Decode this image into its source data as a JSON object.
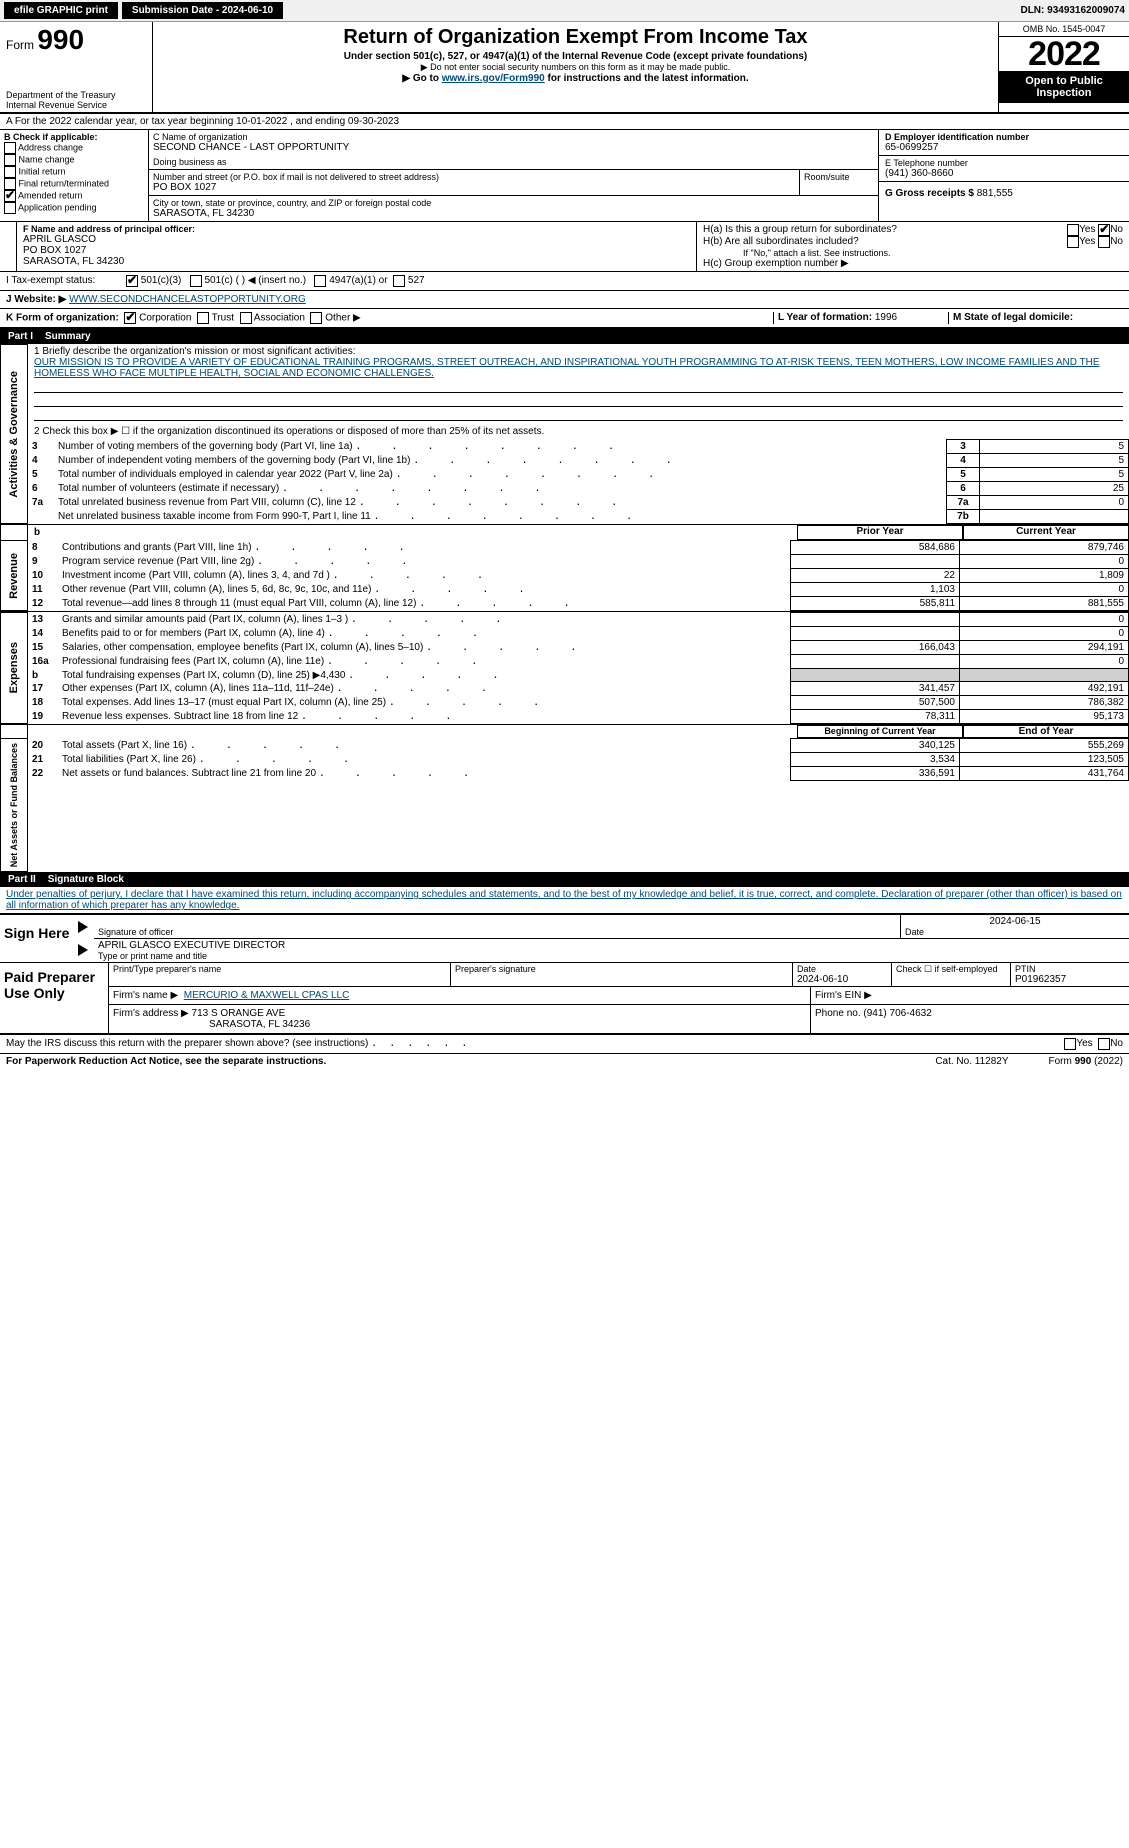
{
  "topbar": {
    "efile": "efile GRAPHIC print",
    "submission_label": "Submission Date - 2024-06-10",
    "dln": "DLN: 93493162009074"
  },
  "form_header": {
    "form_label": "Form",
    "form_number": "990",
    "dept": "Department of the Treasury",
    "irs": "Internal Revenue Service",
    "title": "Return of Organization Exempt From Income Tax",
    "sub1": "Under section 501(c), 527, or 4947(a)(1) of the Internal Revenue Code (except private foundations)",
    "sub2": "▶ Do not enter social security numbers on this form as it may be made public.",
    "sub3_pre": "▶ Go to ",
    "sub3_link": "www.irs.gov/Form990",
    "sub3_post": " for instructions and the latest information.",
    "omb": "OMB No. 1545-0047",
    "year": "2022",
    "open": "Open to Public Inspection"
  },
  "period": {
    "a": "A For the 2022 calendar year, or tax year beginning 10-01-2022     , and ending 09-30-2023"
  },
  "boxB": {
    "label": "B Check if applicable:",
    "addr": "Address change",
    "name": "Name change",
    "init": "Initial return",
    "final": "Final return/terminated",
    "amend": "Amended return",
    "app": "Application pending",
    "amend_checked": true
  },
  "boxC": {
    "label": "C Name of organization",
    "org": "SECOND CHANCE - LAST OPPORTUNITY",
    "dba_label": "Doing business as",
    "street_label": "Number and street (or P.O. box if mail is not delivered to street address)",
    "room_label": "Room/suite",
    "street": "PO BOX 1027",
    "city_label": "City or town, state or province, country, and ZIP or foreign postal code",
    "city": "SARASOTA, FL  34230"
  },
  "boxD": {
    "label": "D Employer identification number",
    "ein": "65-0699257"
  },
  "boxE": {
    "label": "E Telephone number",
    "phone": "(941) 360-8660"
  },
  "boxG": {
    "label": "G Gross receipts $",
    "val": "881,555"
  },
  "boxF": {
    "label": "F Name and address of principal officer:",
    "name": "APRIL GLASCO",
    "line2": "PO BOX 1027",
    "line3": "SARASOTA, FL  34230"
  },
  "boxH": {
    "a": "H(a)   Is this a group return for subordinates?",
    "a_yes": "Yes",
    "a_no": "No",
    "b": "H(b)   Are all subordinates included?",
    "b_yes": "Yes",
    "b_no": "No",
    "b_note": "If \"No,\" attach a list. See instructions.",
    "c": "H(c)   Group exemption number ▶"
  },
  "boxI": {
    "label": "I     Tax-exempt status:",
    "c3": "501(c)(3)",
    "c": "501(c) (    ) ◀ (insert no.)",
    "a1": "4947(a)(1) or",
    "s527": "527"
  },
  "boxJ": {
    "label": "J     Website: ▶",
    "url": "WWW.SECONDCHANCELASTOPPORTUNITY.ORG"
  },
  "boxK": {
    "label": "K Form of organization:",
    "corp": "Corporation",
    "trust": "Trust",
    "assoc": "Association",
    "other": "Other ▶"
  },
  "boxL": {
    "label": "L Year of formation:",
    "val": "1996"
  },
  "boxM": {
    "label": "M State of legal domicile:",
    "val": ""
  },
  "part1": {
    "title": "Part I",
    "name": "Summary",
    "l1": "1  Briefly describe the organization's mission or most significant activities:",
    "mission": "OUR MISSION IS TO PROVIDE A VARIETY OF EDUCATIONAL TRAINING PROGRAMS, STREET OUTREACH, AND INSPIRATIONAL YOUTH PROGRAMMING TO AT-RISK TEENS, TEEN MOTHERS, LOW INCOME FAMILIES AND THE HOMELESS WHO FACE MULTIPLE HEALTH, SOCIAL AND ECONOMIC CHALLENGES.",
    "l2": "2  Check this box ▶ ☐  if the organization discontinued its operations or disposed of more than 25% of its net assets.",
    "rows_ag": [
      {
        "n": "3",
        "t": "Number of voting members of the governing body (Part VI, line 1a)",
        "box": "3",
        "v": "5"
      },
      {
        "n": "4",
        "t": "Number of independent voting members of the governing body (Part VI, line 1b)",
        "box": "4",
        "v": "5"
      },
      {
        "n": "5",
        "t": "Total number of individuals employed in calendar year 2022 (Part V, line 2a)",
        "box": "5",
        "v": "5"
      },
      {
        "n": "6",
        "t": "Total number of volunteers (estimate if necessary)",
        "box": "6",
        "v": "25"
      },
      {
        "n": "7a",
        "t": "Total unrelated business revenue from Part VIII, column (C), line 12",
        "box": "7a",
        "v": "0"
      },
      {
        "n": "",
        "t": "Net unrelated business taxable income from Form 990-T, Part I, line 11",
        "box": "7b",
        "v": ""
      }
    ],
    "col_prior": "Prior Year",
    "col_curr": "Current Year",
    "rows_rev": [
      {
        "n": "8",
        "t": "Contributions and grants (Part VIII, line 1h)",
        "p": "584,686",
        "c": "879,746"
      },
      {
        "n": "9",
        "t": "Program service revenue (Part VIII, line 2g)",
        "p": "",
        "c": "0"
      },
      {
        "n": "10",
        "t": "Investment income (Part VIII, column (A), lines 3, 4, and 7d )",
        "p": "22",
        "c": "1,809"
      },
      {
        "n": "11",
        "t": "Other revenue (Part VIII, column (A), lines 5, 6d, 8c, 9c, 10c, and 11e)",
        "p": "1,103",
        "c": "0"
      },
      {
        "n": "12",
        "t": "Total revenue—add lines 8 through 11 (must equal Part VIII, column (A), line 12)",
        "p": "585,811",
        "c": "881,555"
      }
    ],
    "rows_exp": [
      {
        "n": "13",
        "t": "Grants and similar amounts paid (Part IX, column (A), lines 1–3 )",
        "p": "",
        "c": "0"
      },
      {
        "n": "14",
        "t": "Benefits paid to or for members (Part IX, column (A), line 4)",
        "p": "",
        "c": "0"
      },
      {
        "n": "15",
        "t": "Salaries, other compensation, employee benefits (Part IX, column (A), lines 5–10)",
        "p": "166,043",
        "c": "294,191"
      },
      {
        "n": "16a",
        "t": "Professional fundraising fees (Part IX, column (A), line 11e)",
        "p": "",
        "c": "0"
      },
      {
        "n": "b",
        "t": "Total fundraising expenses (Part IX, column (D), line 25) ▶4,430",
        "p": "shade",
        "c": "shade"
      },
      {
        "n": "17",
        "t": "Other expenses (Part IX, column (A), lines 11a–11d, 11f–24e)",
        "p": "341,457",
        "c": "492,191"
      },
      {
        "n": "18",
        "t": "Total expenses. Add lines 13–17 (must equal Part IX, column (A), line 25)",
        "p": "507,500",
        "c": "786,382"
      },
      {
        "n": "19",
        "t": "Revenue less expenses. Subtract line 18 from line 12",
        "p": "78,311",
        "c": "95,173"
      }
    ],
    "col_begin": "Beginning of Current Year",
    "col_end": "End of Year",
    "rows_na": [
      {
        "n": "20",
        "t": "Total assets (Part X, line 16)",
        "p": "340,125",
        "c": "555,269"
      },
      {
        "n": "21",
        "t": "Total liabilities (Part X, line 26)",
        "p": "3,534",
        "c": "123,505"
      },
      {
        "n": "22",
        "t": "Net assets or fund balances. Subtract line 21 from line 20",
        "p": "336,591",
        "c": "431,764"
      }
    ],
    "side_ag": "Activities & Governance",
    "side_rev": "Revenue",
    "side_exp": "Expenses",
    "side_na": "Net Assets or Fund Balances"
  },
  "part2": {
    "title": "Part II",
    "name": "Signature Block",
    "decl": "Under penalties of perjury, I declare that I have examined this return, including accompanying schedules and statements, and to the best of my knowledge and belief, it is true, correct, and complete. Declaration of preparer (other than officer) is based on all information of which preparer has any knowledge.",
    "sign_here": "Sign Here",
    "sig_off": "Signature of officer",
    "date": "Date",
    "date_val": "2024-06-15",
    "name_title": "APRIL GLASCO  EXECUTIVE DIRECTOR",
    "type_name": "Type or print name and title",
    "paid": "Paid Preparer Use Only",
    "prep_name_lbl": "Print/Type preparer's name",
    "prep_sig_lbl": "Preparer's signature",
    "prep_date": "2024-06-10",
    "self": "Check ☐ if self-employed",
    "ptin_lbl": "PTIN",
    "ptin": "P01962357",
    "firm_name_lbl": "Firm's name     ▶",
    "firm_name": "MERCURIO & MAXWELL CPAS LLC",
    "firm_ein_lbl": "Firm's EIN ▶",
    "firm_addr_lbl": "Firm's address ▶",
    "firm_addr1": "713 S ORANGE AVE",
    "firm_addr2": "SARASOTA, FL  34236",
    "firm_phone_lbl": "Phone no.",
    "firm_phone": "(941) 706-4632",
    "discuss": "May the IRS discuss this return with the preparer shown above? (see instructions)",
    "yes": "Yes",
    "no": "No"
  },
  "footer": {
    "pra": "For Paperwork Reduction Act Notice, see the separate instructions.",
    "cat": "Cat. No. 11282Y",
    "form": "Form 990 (2022)"
  },
  "colors": {
    "link": "#004b7a",
    "shade": "#d0d0d0"
  }
}
